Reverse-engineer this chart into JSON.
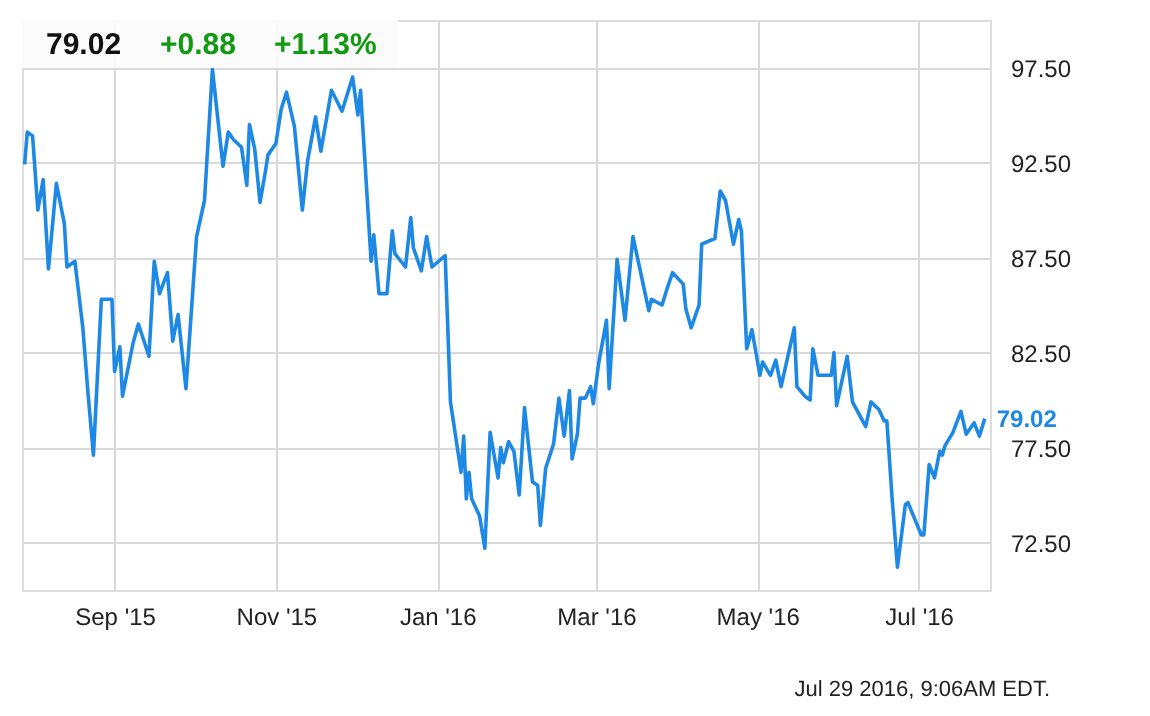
{
  "chart_data": {
    "type": "line",
    "annotations": [
      "79.02",
      "+0.88",
      "+1.13%",
      {
        "text": "79.02",
        "x": "2016-07-26",
        "y": 79.02
      },
      "Jul 29 2016, 9:06AM EDT."
    ],
    "x": [
      "2015-07-29",
      "2015-07-30",
      "2015-08-01",
      "2015-08-03",
      "2015-08-05",
      "2015-08-07",
      "2015-08-10",
      "2015-08-13",
      "2015-08-14",
      "2015-08-17",
      "2015-08-20",
      "2015-08-22",
      "2015-08-24",
      "2015-08-27",
      "2015-08-31",
      "2015-09-01",
      "2015-09-03",
      "2015-09-04",
      "2015-09-08",
      "2015-09-10",
      "2015-09-14",
      "2015-09-16",
      "2015-09-18",
      "2015-09-21",
      "2015-09-23",
      "2015-09-25",
      "2015-09-28",
      "2015-10-02",
      "2015-10-05",
      "2015-10-08",
      "2015-10-12",
      "2015-10-14",
      "2015-10-16",
      "2015-10-19",
      "2015-10-21",
      "2015-10-22",
      "2015-10-24",
      "2015-10-26",
      "2015-10-28",
      "2015-10-29",
      "2015-11-01",
      "2015-11-03",
      "2015-11-05",
      "2015-11-08",
      "2015-11-11",
      "2015-11-13",
      "2015-11-16",
      "2015-11-18",
      "2015-11-22",
      "2015-11-26",
      "2015-11-30",
      "2015-12-02",
      "2015-12-03",
      "2015-12-07",
      "2015-12-08",
      "2015-12-10",
      "2015-12-13",
      "2015-12-15",
      "2015-12-16",
      "2015-12-20",
      "2015-12-22",
      "2015-12-23",
      "2015-12-26",
      "2015-12-28",
      "2015-12-30",
      "2016-01-04",
      "2016-01-06",
      "2016-01-10",
      "2016-01-11",
      "2016-01-12",
      "2016-01-13",
      "2016-01-14",
      "2016-01-17",
      "2016-01-19",
      "2016-01-21",
      "2016-01-24",
      "2016-01-25",
      "2016-01-26",
      "2016-01-28",
      "2016-01-30",
      "2016-02-01",
      "2016-02-03",
      "2016-02-06",
      "2016-02-08",
      "2016-02-09",
      "2016-02-11",
      "2016-02-14",
      "2016-02-16",
      "2016-02-18",
      "2016-02-20",
      "2016-02-21",
      "2016-02-23",
      "2016-02-24",
      "2016-02-26",
      "2016-02-28",
      "2016-02-29",
      "2016-03-02",
      "2016-03-05",
      "2016-03-06",
      "2016-03-09",
      "2016-03-12",
      "2016-03-15",
      "2016-03-19",
      "2016-03-21",
      "2016-03-22",
      "2016-03-26",
      "2016-03-28",
      "2016-03-30",
      "2016-04-03",
      "2016-04-04",
      "2016-04-06",
      "2016-04-09",
      "2016-04-10",
      "2016-04-15",
      "2016-04-17",
      "2016-04-19",
      "2016-04-22",
      "2016-04-24",
      "2016-04-25",
      "2016-04-27",
      "2016-04-29",
      "2016-05-02",
      "2016-05-03",
      "2016-05-06",
      "2016-05-08",
      "2016-05-10",
      "2016-05-15",
      "2016-05-16",
      "2016-05-19",
      "2016-05-21",
      "2016-05-22",
      "2016-05-24",
      "2016-05-29",
      "2016-05-30",
      "2016-05-31",
      "2016-06-04",
      "2016-06-06",
      "2016-06-11",
      "2016-06-13",
      "2016-06-16",
      "2016-06-18",
      "2016-06-19",
      "2016-06-21",
      "2016-06-23",
      "2016-06-26",
      "2016-06-27",
      "2016-07-02",
      "2016-07-03",
      "2016-07-05",
      "2016-07-07",
      "2016-07-09",
      "2016-07-10",
      "2016-07-11",
      "2016-07-14",
      "2016-07-17",
      "2016-07-19",
      "2016-07-22",
      "2016-07-24",
      "2016-07-26"
    ],
    "series": [
      {
        "color": "#1e88e5",
        "values": [
          92.4,
          94.1,
          93.9,
          90.0,
          91.6,
          86.9,
          91.4,
          89.3,
          87.0,
          87.3,
          83.8,
          80.3,
          77.1,
          85.3,
          85.3,
          81.5,
          82.8,
          80.2,
          83.0,
          84.0,
          82.3,
          87.3,
          85.6,
          86.7,
          83.1,
          84.5,
          80.6,
          88.6,
          90.5,
          97.4,
          92.3,
          94.1,
          93.7,
          93.3,
          91.3,
          94.5,
          93.2,
          90.4,
          92.0,
          92.9,
          93.5,
          95.3,
          96.2,
          94.4,
          90.0,
          92.6,
          94.9,
          93.1,
          96.3,
          95.2,
          97.0,
          95.0,
          96.3,
          87.3,
          88.7,
          85.6,
          85.6,
          88.9,
          87.7,
          87.0,
          89.6,
          88.0,
          86.8,
          88.6,
          87.0,
          87.6,
          79.9,
          76.2,
          78.1,
          74.8,
          76.2,
          74.8,
          73.9,
          72.2,
          78.3,
          75.9,
          77.5,
          76.7,
          77.8,
          77.3,
          75.0,
          79.6,
          75.7,
          75.5,
          73.4,
          76.4,
          77.7,
          80.1,
          78.1,
          80.5,
          76.9,
          78.2,
          80.1,
          80.1,
          80.7,
          79.8,
          81.9,
          84.2,
          80.6,
          87.4,
          84.2,
          88.6,
          86.0,
          84.7,
          85.3,
          85.0,
          85.9,
          86.7,
          86.1,
          84.8,
          83.8,
          85.0,
          88.2,
          88.5,
          91.0,
          90.5,
          88.2,
          89.5,
          88.9,
          82.7,
          83.7,
          81.3,
          82.0,
          81.3,
          82.1,
          80.7,
          83.8,
          80.7,
          80.2,
          80.0,
          82.7,
          81.3,
          81.3,
          82.5,
          79.7,
          82.3,
          79.9,
          78.6,
          79.9,
          79.5,
          78.9,
          78.9,
          74.8,
          71.2,
          74.5,
          74.6,
          72.9,
          72.9,
          76.6,
          75.9,
          77.3,
          77.1,
          77.6,
          78.3,
          79.4,
          78.2,
          78.8,
          78.1,
          79.02
        ]
      }
    ],
    "xlim": [
      "2015-07-28",
      "2016-07-28"
    ],
    "xticks": [
      {
        "value": "2015-09-01",
        "label": "Sep '15"
      },
      {
        "value": "2015-11-01",
        "label": "Nov '15"
      },
      {
        "value": "2016-01-01",
        "label": "Jan '16"
      },
      {
        "value": "2016-03-01",
        "label": "Mar '16"
      },
      {
        "value": "2016-05-01",
        "label": "May '16"
      },
      {
        "value": "2016-07-01",
        "label": "Jul '16"
      }
    ],
    "ylim": [
      70,
      100
    ],
    "yticks": [
      {
        "value": 72.5,
        "label": "72.50"
      },
      {
        "value": 77.5,
        "label": "77.50"
      },
      {
        "value": 82.5,
        "label": "82.50"
      },
      {
        "value": 87.5,
        "label": "87.50"
      },
      {
        "value": 92.5,
        "label": "92.50"
      },
      {
        "value": 97.5,
        "label": "97.50"
      }
    ],
    "grid": true,
    "marker": "none",
    "line_style": "solid"
  }
}
